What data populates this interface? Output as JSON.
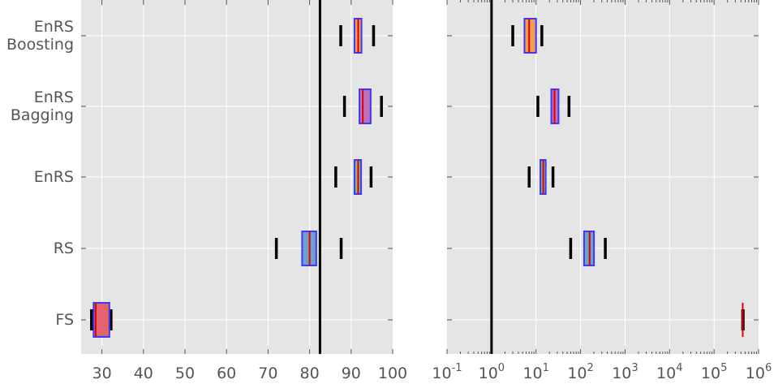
{
  "chart_data": [
    {
      "type": "boxplot",
      "orientation": "horizontal",
      "xscale": "linear",
      "xlim": [
        25,
        100
      ],
      "xticks": [
        30,
        40,
        50,
        60,
        70,
        80,
        90,
        100
      ],
      "categories": [
        "FS",
        "RS",
        "EnRS",
        "EnRS\nBagging",
        "EnRS\nBoosting"
      ],
      "category_lines": [
        [
          "FS"
        ],
        [
          "RS"
        ],
        [
          "EnRS"
        ],
        [
          "EnRS",
          "Bagging"
        ],
        [
          "EnRS",
          "Boosting"
        ]
      ],
      "reference_line": 82.5,
      "grid": true,
      "boxes": [
        {
          "category": "FS",
          "whisker_low": 27.5,
          "q1": 28.0,
          "median": 28.5,
          "q3": 31.8,
          "whisker_high": 32.2,
          "fill": "#e5646c"
        },
        {
          "category": "RS",
          "whisker_low": 72.0,
          "q1": 78.2,
          "median": 80.0,
          "q3": 81.6,
          "whisker_high": 87.6,
          "fill": "#6fa0c8"
        },
        {
          "category": "EnRS",
          "whisker_low": 86.3,
          "q1": 90.8,
          "median": 91.7,
          "q3": 92.4,
          "whisker_high": 94.8,
          "fill": "#8fb080"
        },
        {
          "category": "EnRS\nBagging",
          "whisker_low": 88.4,
          "q1": 92.0,
          "median": 92.8,
          "q3": 94.7,
          "whisker_high": 97.3,
          "fill": "#c070b8"
        },
        {
          "category": "EnRS\nBoosting",
          "whisker_low": 87.5,
          "q1": 90.8,
          "median": 91.7,
          "q3": 92.5,
          "whisker_high": 95.4,
          "fill": "#f0a050"
        }
      ],
      "colors": {
        "box_edge": "#3a3aff",
        "median": "#e00000",
        "whisker": "#000000",
        "reference": "#000000"
      }
    },
    {
      "type": "boxplot",
      "orientation": "horizontal",
      "xscale": "log",
      "xlim": [
        0.1,
        1000000
      ],
      "xticks": [
        0.1,
        1,
        10,
        100,
        1000,
        10000,
        100000,
        1000000
      ],
      "xtick_labels": [
        {
          "base": "10",
          "exp": "-1"
        },
        {
          "base": "10",
          "exp": "0"
        },
        {
          "base": "10",
          "exp": "1"
        },
        {
          "base": "10",
          "exp": "2"
        },
        {
          "base": "10",
          "exp": "3"
        },
        {
          "base": "10",
          "exp": "4"
        },
        {
          "base": "10",
          "exp": "5"
        },
        {
          "base": "10",
          "exp": "6"
        }
      ],
      "reference_line": 1,
      "grid": true,
      "boxes": [
        {
          "category": "FS",
          "whisker_low": 440000,
          "q1": 440000,
          "median": 440000,
          "q3": 440000,
          "whisker_high": 450000,
          "fill": "#e5646c"
        },
        {
          "category": "RS",
          "whisker_low": 60,
          "q1": 120,
          "median": 160,
          "q3": 200,
          "whisker_high": 360,
          "fill": "#6fa0c8"
        },
        {
          "category": "EnRS",
          "whisker_low": 7,
          "q1": 12.5,
          "median": 14.5,
          "q3": 16.5,
          "whisker_high": 24,
          "fill": "#8fb080"
        },
        {
          "category": "EnRS\nBagging",
          "whisker_low": 11,
          "q1": 22,
          "median": 26,
          "q3": 32,
          "whisker_high": 55,
          "fill": "#c070b8"
        },
        {
          "category": "EnRS\nBoosting",
          "whisker_low": 3,
          "q1": 5.5,
          "median": 7,
          "q3": 10,
          "whisker_high": 13.5,
          "fill": "#f0a050"
        }
      ],
      "colors": {
        "box_edge": "#3a3aff",
        "median": "#e00000",
        "whisker": "#000000",
        "reference": "#000000"
      }
    }
  ]
}
